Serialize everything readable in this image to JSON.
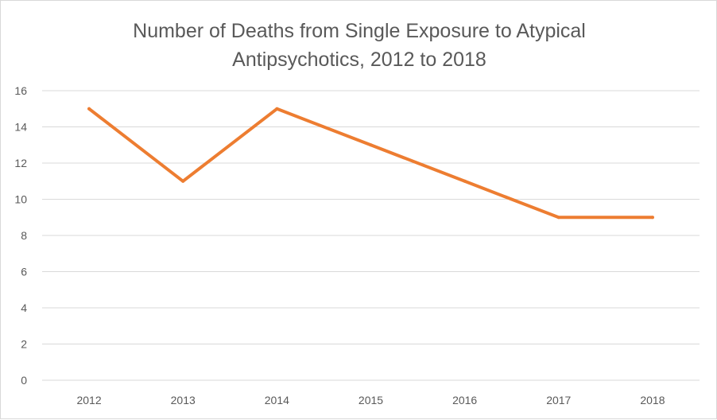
{
  "chart_data": {
    "type": "line",
    "title_lines": [
      "Number of Deaths from Single Exposure to Atypical",
      "Antipsychotics, 2012 to 2018"
    ],
    "categories": [
      "2012",
      "2013",
      "2014",
      "2015",
      "2016",
      "2017",
      "2018"
    ],
    "series": [
      {
        "values": [
          15,
          11,
          15,
          13,
          11,
          9,
          9
        ]
      }
    ],
    "ylim": [
      0,
      16
    ],
    "yticks": [
      0,
      2,
      4,
      6,
      8,
      10,
      12,
      14,
      16
    ],
    "xlabel": "",
    "ylabel": "",
    "grid": true,
    "legend": "none",
    "colors": {
      "line": "#ED7D31",
      "grid": "#d9d9d9",
      "text": "#595959"
    }
  }
}
